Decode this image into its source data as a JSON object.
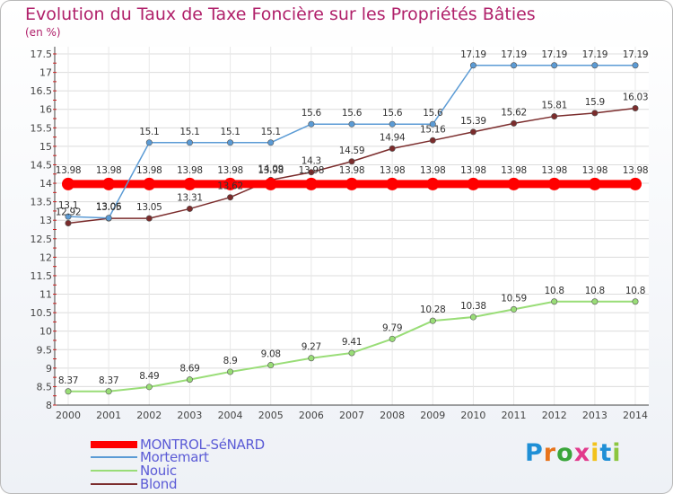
{
  "chart_data": {
    "type": "line",
    "title": "Evolution du Taux de Taxe Foncière sur les Propriétés Bâties",
    "unit_label": "(en %)",
    "x": [
      "2000",
      "2001",
      "2002",
      "2003",
      "2004",
      "2005",
      "2006",
      "2007",
      "2008",
      "2009",
      "2010",
      "2011",
      "2012",
      "2013",
      "2014"
    ],
    "ylim": [
      8,
      17.5
    ],
    "yticks": [
      "8",
      "8.5",
      "9",
      "9.5",
      "10",
      "10.5",
      "11",
      "11.5",
      "12",
      "12.5",
      "13",
      "13.5",
      "14",
      "14.5",
      "15",
      "15.5",
      "16",
      "16.5",
      "17",
      "17.5"
    ],
    "series": [
      {
        "name": "MONTROL-SéNARD",
        "color": "#ff0000",
        "values": [
          13.98,
          13.98,
          13.98,
          13.98,
          13.98,
          13.98,
          13.98,
          13.98,
          13.98,
          13.98,
          13.98,
          13.98,
          13.98,
          13.98,
          13.98
        ],
        "labels": [
          "13.98",
          "13.98",
          "13.98",
          "13.98",
          "13.98",
          "13.98",
          "13.98",
          "13.98",
          "13.98",
          "13.98",
          "13.98",
          "13.98",
          "13.98",
          "13.98",
          "13.98"
        ]
      },
      {
        "name": "Mortemart",
        "color": "#5b9bd5",
        "values": [
          13.1,
          13.06,
          15.1,
          15.1,
          15.1,
          15.1,
          15.6,
          15.6,
          15.6,
          15.6,
          17.19,
          17.19,
          17.19,
          17.19,
          17.19
        ],
        "labels": [
          "13.1",
          "13.06",
          "15.1",
          "15.1",
          "15.1",
          "15.1",
          "15.6",
          "15.6",
          "15.6",
          "15.6",
          "17.19",
          "17.19",
          "17.19",
          "17.19",
          "17.19"
        ]
      },
      {
        "name": "Nouic",
        "color": "#99dd77",
        "values": [
          8.37,
          8.37,
          8.49,
          8.69,
          8.9,
          9.08,
          9.27,
          9.41,
          9.79,
          10.28,
          10.38,
          10.59,
          10.8,
          10.8,
          10.8
        ],
        "labels": [
          "8.37",
          "8.37",
          "8.49",
          "8.69",
          "8.9",
          "9.08",
          "9.27",
          "9.41",
          "9.79",
          "10.28",
          "10.38",
          "10.59",
          "10.8",
          "10.8",
          "10.8"
        ]
      },
      {
        "name": "Blond",
        "color": "#7b2c2c",
        "values": [
          12.92,
          13.05,
          13.05,
          13.31,
          13.62,
          14.09,
          14.3,
          14.59,
          14.94,
          15.16,
          15.39,
          15.62,
          15.81,
          15.9,
          16.03
        ],
        "labels": [
          "12.92",
          "13.05",
          "13.05",
          "13.31",
          "13.62",
          "14.09",
          "14.3",
          "14.59",
          "14.94",
          "15.16",
          "15.39",
          "15.62",
          "15.81",
          "15.9",
          "16.03"
        ]
      }
    ]
  },
  "legend": {
    "items": [
      "MONTROL-SéNARD",
      "Mortemart",
      "Nouic",
      "Blond"
    ]
  },
  "logo": {
    "text": "Proxiti",
    "letter_colors": [
      "#1f8fd6",
      "#e8731a",
      "#3aa53a",
      "#e23a8c",
      "#f2c21b",
      "#1f8fd6",
      "#8cc63f"
    ]
  }
}
